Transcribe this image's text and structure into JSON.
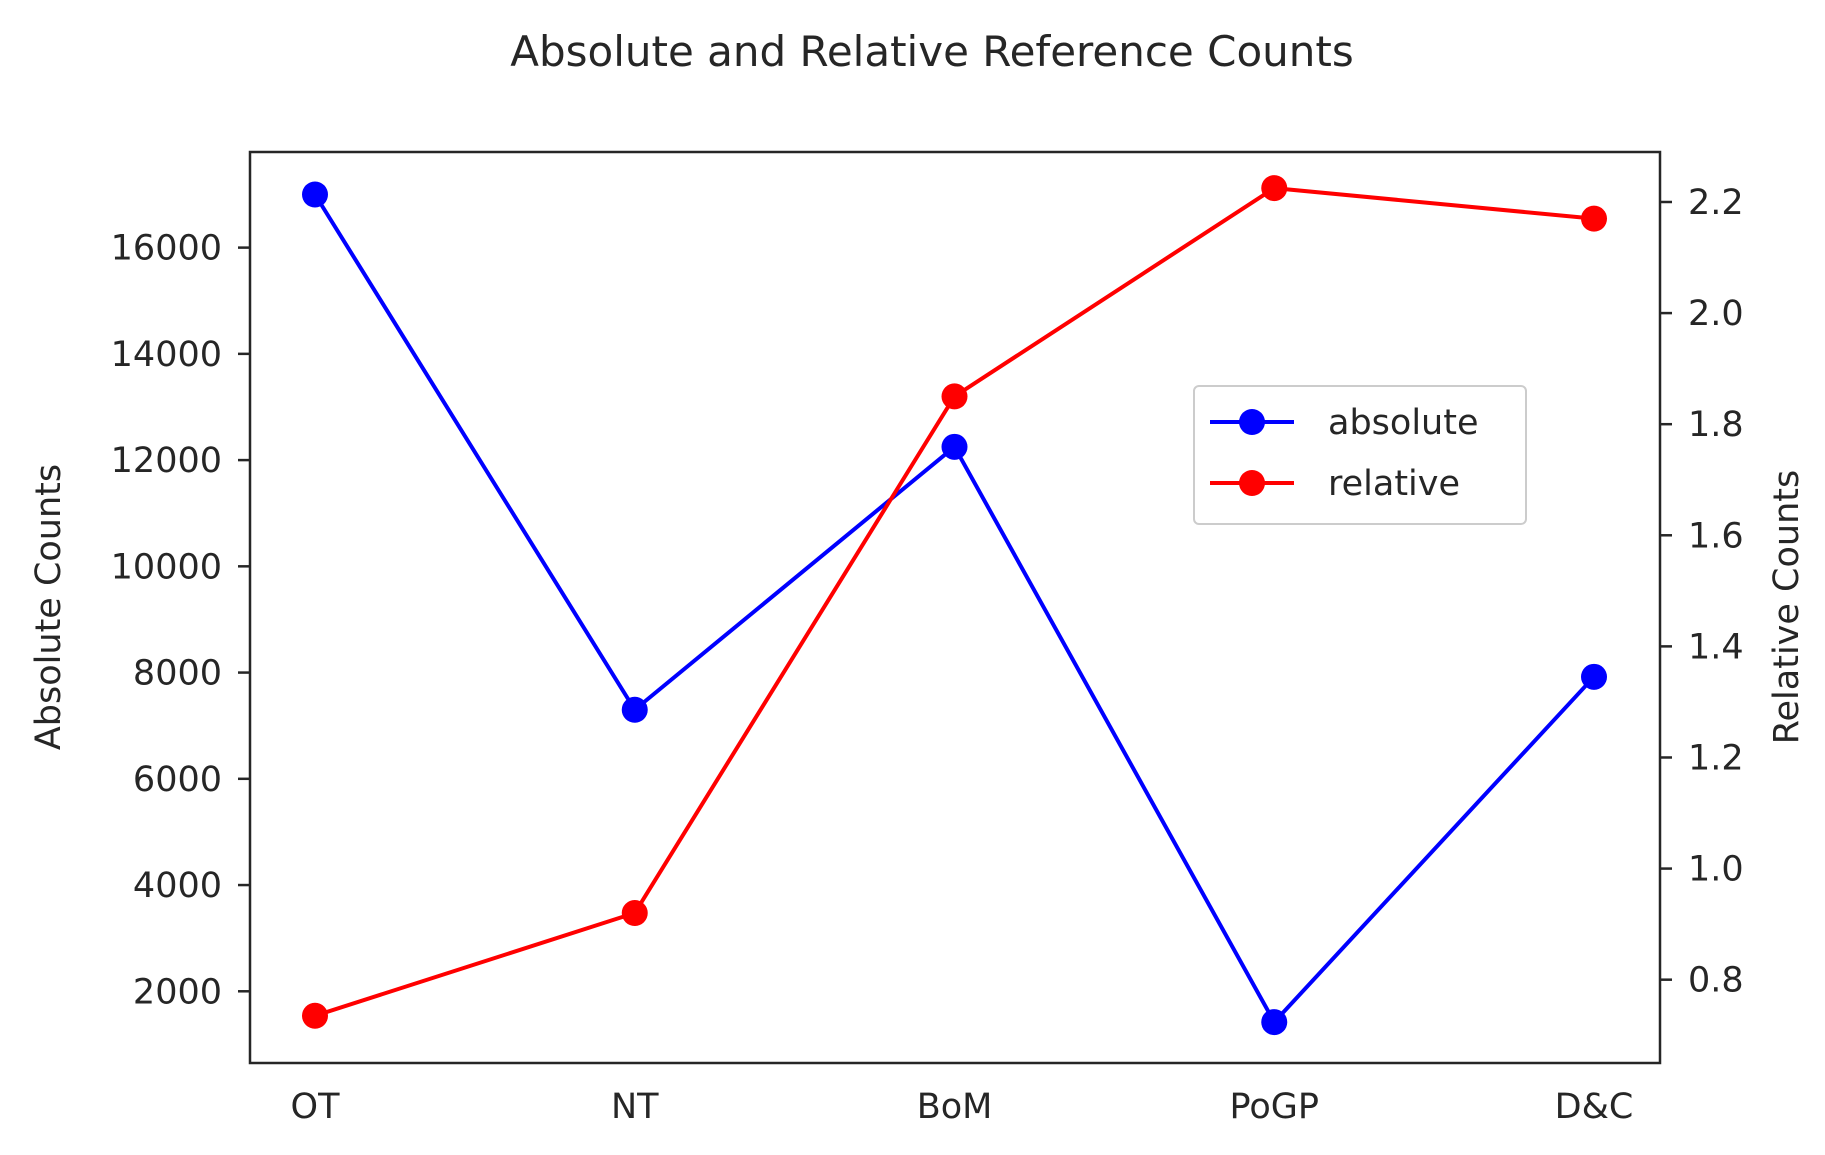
{
  "chart_data": {
    "type": "line",
    "title": "Absolute and Relative Reference Counts",
    "categories": [
      "OT",
      "NT",
      "BoM",
      "PoGP",
      "D&C"
    ],
    "xlabel": "",
    "ylabel": "Absolute Counts",
    "ylabel_right": "Relative Counts",
    "ylim": [
      650,
      17800
    ],
    "ylim_right": [
      0.65,
      2.29
    ],
    "yticks": [
      2000,
      4000,
      6000,
      8000,
      10000,
      12000,
      14000,
      16000
    ],
    "yticks_right": [
      0.8,
      1.0,
      1.2,
      1.4,
      1.6,
      1.8,
      2.0,
      2.2
    ],
    "yticks_right_labels": [
      "0.8",
      "1.0",
      "1.2",
      "1.4",
      "1.6",
      "1.8",
      "2.0",
      "2.2"
    ],
    "grid": false,
    "legend_position": "center-right",
    "series": [
      {
        "name": "absolute",
        "axis": "left",
        "color": "#0000ff",
        "values": [
          17000,
          7300,
          12250,
          1420,
          7920
        ]
      },
      {
        "name": "relative",
        "axis": "right",
        "color": "#ff0000",
        "values": [
          0.735,
          0.92,
          1.85,
          2.225,
          2.17
        ]
      }
    ]
  }
}
